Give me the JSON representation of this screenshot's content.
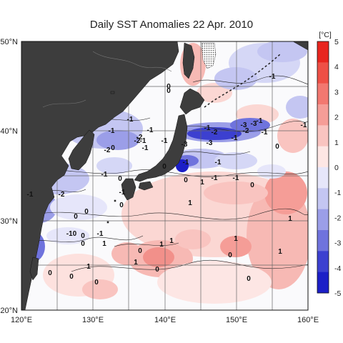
{
  "title": "Daily SST Anomalies 22 Apr. 2010",
  "map": {
    "lon_range": [
      120,
      160
    ],
    "lat_range": [
      20,
      50
    ],
    "x_ticks": [
      "120°E",
      "130°E",
      "140°E",
      "150°E",
      "160°E"
    ],
    "y_ticks": [
      "20°N",
      "30°N",
      "40°N",
      "50°N"
    ],
    "grid": "5° lines",
    "land_color": "#3d3d3d",
    "sea_ice_pattern": "dotted"
  },
  "colorbar": {
    "unit": "[°C]",
    "ticks": [
      "5",
      "4",
      "3",
      "2",
      "1",
      "0",
      "-1",
      "-2",
      "-3",
      "-4",
      "-5"
    ],
    "colors": [
      "#e8261f",
      "#ee5046",
      "#f27870",
      "#f59d97",
      "#f9c4c0",
      "#fde6e4",
      "#e6e6fa",
      "#c4c6f2",
      "#9b9ee8",
      "#6f73dd",
      "#3c40d0",
      "#1c1fc7"
    ]
  },
  "contour_labels": [
    "0",
    "-1",
    "-1",
    "0",
    "-1",
    "-1",
    "-1",
    "-2",
    "-1",
    "-2",
    "-2",
    "-1",
    "-3",
    "-3",
    "-2",
    "-1",
    "-1",
    "-3",
    "-1",
    "-2",
    "-3",
    "-1",
    "-1",
    "0",
    "0",
    "0",
    "-1",
    "-1",
    "-2",
    "-1",
    "-1",
    "0",
    "-1",
    "0",
    "0",
    "0",
    "-1",
    "0",
    "1",
    "0",
    "-1",
    "0",
    "0",
    "1",
    "-10",
    "1",
    "0",
    "0",
    "1",
    "1",
    "1",
    "0",
    "0",
    "1",
    "1",
    "0",
    "1",
    "0",
    "0",
    "1",
    "-1"
  ]
}
